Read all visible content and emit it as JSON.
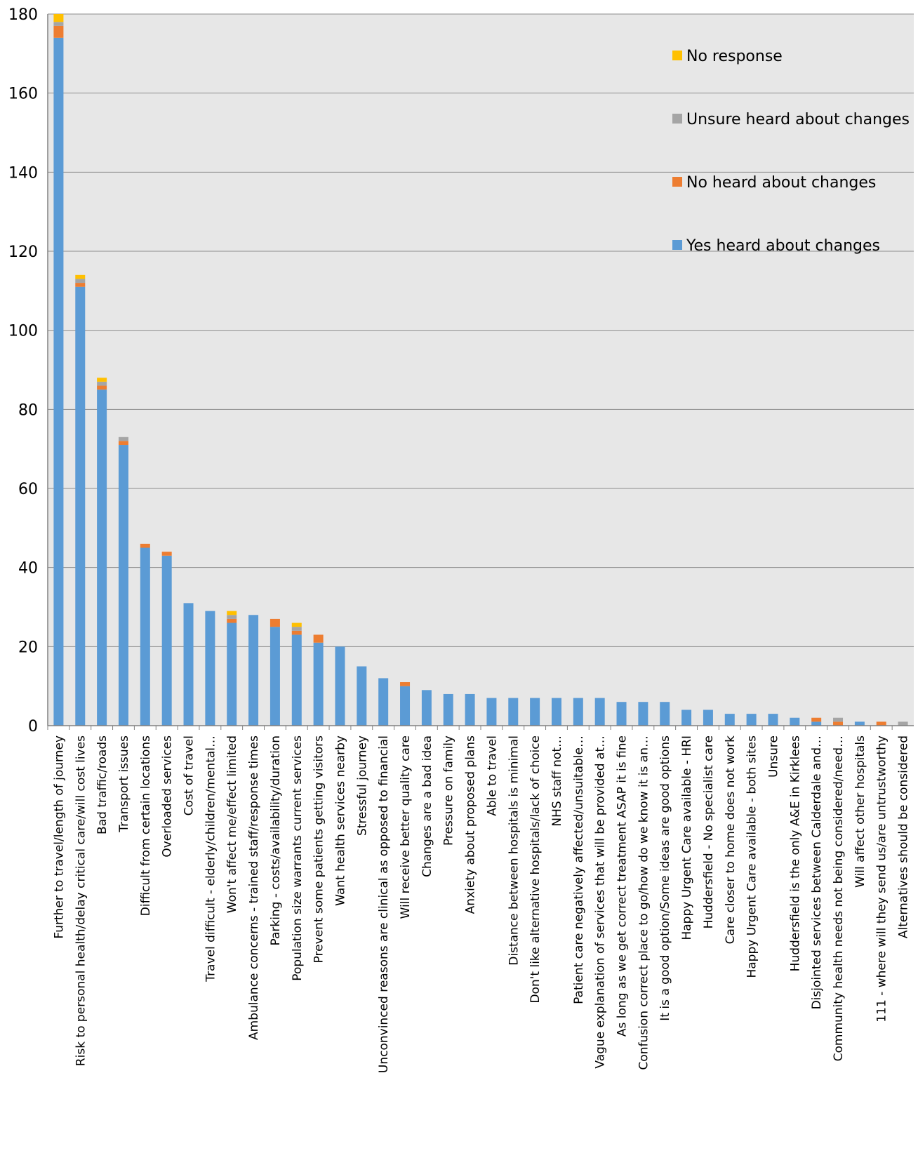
{
  "chart_data": {
    "type": "bar",
    "stacked": true,
    "ylim": [
      0,
      180
    ],
    "yticks": [
      0,
      20,
      40,
      60,
      80,
      100,
      120,
      140,
      160,
      180
    ],
    "grid": true,
    "legend_position": "top-right",
    "categories": [
      "Further to travel/length of journey",
      "Risk to personal health/delay critical care/will cost lives",
      "Bad traffic/roads",
      "Transport issues",
      "Difficult from certain locations",
      "Overloaded services",
      "Cost of travel",
      "Travel difficult - elderly/children/mental…",
      "Won't affect me/effect limited",
      "Ambulance concerns - trained staff/response times",
      "Parking - costs/availability/duration",
      "Population size warrants current services",
      "Prevent some patients getting visitors",
      "Want health services nearby",
      "Stressful journey",
      "Unconvinced reasons are clinical as opposed to financial",
      "Will receive better quality care",
      "Changes are a bad idea",
      "Pressure on family",
      "Anxiety about proposed plans",
      "Able to travel",
      "Distance between hospitals is minimal",
      "Don't like alternative hospitals/lack of choice",
      "NHS staff not…",
      "Patient care negatively affected/unsuitable…",
      "Vague explanation of services that will be provided at…",
      "As long as we get correct treatment ASAP it is fine",
      "Confusion correct place to go/how do we know it is an…",
      "It is a good option/Some ideas are good options",
      "Happy Urgent Care available - HRI",
      "Huddersfield - No specialist care",
      "Care closer to home does not work",
      "Happy Urgent Care available - both sites",
      "Unsure",
      "Huddersfield is the only A&E in Kirklees",
      "Disjointed services between Calderdale and…",
      "Community health needs not being considered/need…",
      "Will affect other hospitals",
      "111 - where will they send us/are untrustworthy",
      "Alternatives should be considered"
    ],
    "series": [
      {
        "name": "Yes heard about changes",
        "color": "#5B9BD5",
        "values": [
          174,
          111,
          85,
          71,
          45,
          43,
          31,
          29,
          26,
          28,
          25,
          23,
          21,
          20,
          15,
          12,
          10,
          9,
          8,
          8,
          7,
          7,
          7,
          7,
          7,
          7,
          6,
          6,
          6,
          4,
          4,
          3,
          3,
          3,
          2,
          1,
          0,
          1,
          0,
          0
        ]
      },
      {
        "name": "No heard about changes",
        "color": "#ED7D31",
        "values": [
          3,
          1,
          1,
          1,
          1,
          1,
          0,
          0,
          1,
          0,
          2,
          1,
          2,
          0,
          0,
          0,
          1,
          0,
          0,
          0,
          0,
          0,
          0,
          0,
          0,
          0,
          0,
          0,
          0,
          0,
          0,
          0,
          0,
          0,
          0,
          1,
          1,
          0,
          1,
          0
        ]
      },
      {
        "name": "Unsure heard about changes",
        "color": "#A5A5A5",
        "values": [
          1,
          1,
          1,
          1,
          0,
          0,
          0,
          0,
          1,
          0,
          0,
          1,
          0,
          0,
          0,
          0,
          0,
          0,
          0,
          0,
          0,
          0,
          0,
          0,
          0,
          0,
          0,
          0,
          0,
          0,
          0,
          0,
          0,
          0,
          0,
          0,
          1,
          0,
          0,
          1
        ]
      },
      {
        "name": "No response",
        "color": "#FFC000",
        "values": [
          2,
          1,
          1,
          0,
          0,
          0,
          0,
          0,
          1,
          0,
          0,
          1,
          0,
          0,
          0,
          0,
          0,
          0,
          0,
          0,
          0,
          0,
          0,
          0,
          0,
          0,
          0,
          0,
          0,
          0,
          0,
          0,
          0,
          0,
          0,
          0,
          0,
          0,
          0,
          0
        ]
      }
    ],
    "legend_order": [
      "No response",
      "Unsure heard about changes",
      "No heard about changes",
      "Yes heard about changes"
    ],
    "colors": {
      "plot_background": "#E7E7E7",
      "gridline": "#8C8C8C",
      "axis": "#808080"
    }
  }
}
